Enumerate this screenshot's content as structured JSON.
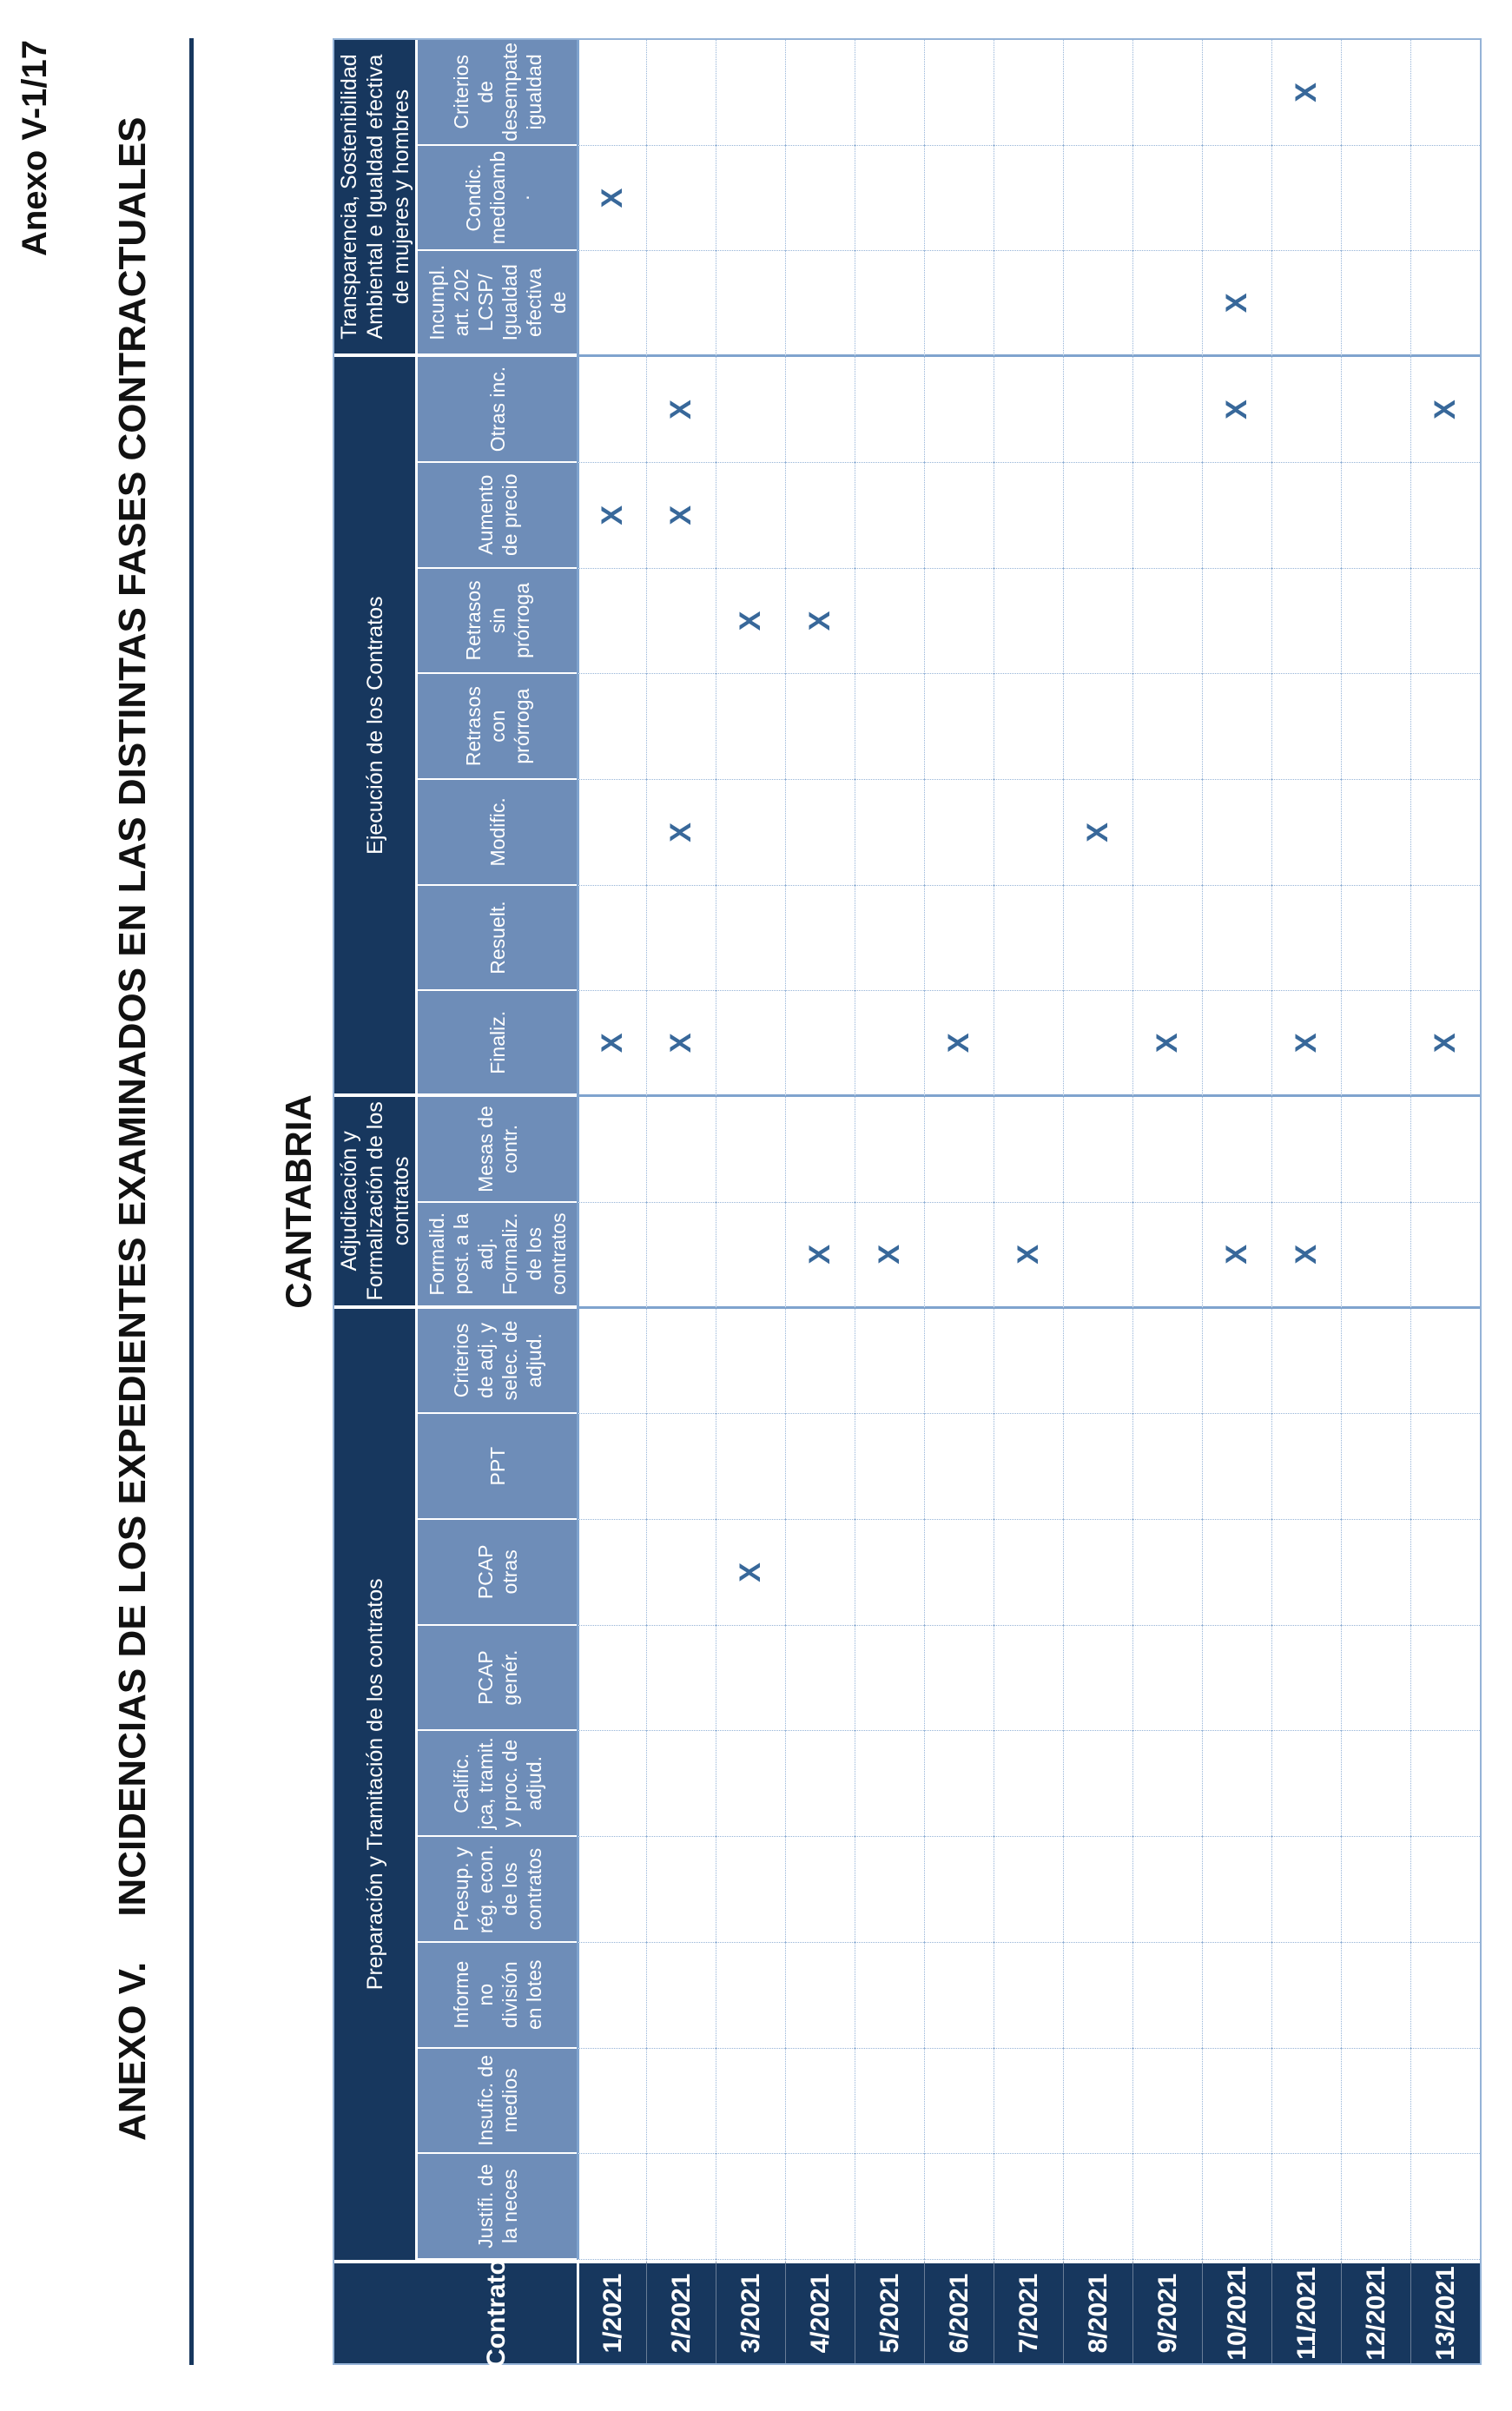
{
  "header": {
    "page_ref": "Anexo V-1/17",
    "title_prefix": "ANEXO V.",
    "title_main": "INCIDENCIAS DE LOS EXPEDIENTES EXAMINADOS EN LAS DISTINTAS FASES CONTRACTUALES",
    "region": "CANTABRIA"
  },
  "colors": {
    "header_navy": "#17375E",
    "subheader_blue": "#6E8DB8",
    "grid_dotted": "#95B3D7",
    "grid_solid": "#7FA3CE",
    "x_mark_blue": "#38689A"
  },
  "table": {
    "corner_label": "Contrato",
    "mark": "X",
    "groups": [
      {
        "label": "Preparación y Tramitación de los contratos",
        "span": 9
      },
      {
        "label": "Adjudicación y\nFormalización de los\ncontratos",
        "span": 2
      },
      {
        "label": "Ejecución de los Contratos",
        "span": 7
      },
      {
        "label": "Transparencia, Sostenibilidad\nAmbiental e Igualdad efectiva\nde mujeres y hombres",
        "span": 3
      }
    ],
    "columns": [
      {
        "id": "justif",
        "label": "Justifi. de\nla neces"
      },
      {
        "id": "insufic",
        "label": "Insufic. de\nmedios"
      },
      {
        "id": "informe-lotes",
        "label": "Informe\nno\ndivisión\nen lotes"
      },
      {
        "id": "presup",
        "label": "Presup. y\nrég. econ.\nde los\ncontratos"
      },
      {
        "id": "calific",
        "label": "Calific.\njca, tramit.\ny proc. de\nadjud."
      },
      {
        "id": "pcap-gener",
        "label": "PCAP\ngenér."
      },
      {
        "id": "pcap-otras",
        "label": "PCAP\notras"
      },
      {
        "id": "ppt",
        "label": "PPT"
      },
      {
        "id": "criterios-adj",
        "label": "Criterios\nde adj. y\nselec. de\nadjud."
      },
      {
        "id": "formalid",
        "label": "Formalid.\npost. a la\nadj.\nFormaliz.\nde los\ncontratos"
      },
      {
        "id": "mesas",
        "label": "Mesas de\ncontr."
      },
      {
        "id": "finaliz",
        "label": "Finaliz."
      },
      {
        "id": "resuelt",
        "label": "Resuelt."
      },
      {
        "id": "modific",
        "label": "Modific."
      },
      {
        "id": "retrasos-con",
        "label": "Retrasos\ncon\nprórroga"
      },
      {
        "id": "retrasos-sin",
        "label": "Retrasos\nsin\nprórroga"
      },
      {
        "id": "aumento",
        "label": "Aumento\nde precio"
      },
      {
        "id": "otras-inc",
        "label": "Otras inc."
      },
      {
        "id": "incumpl",
        "label": "Incumpl.\nart. 202\nLCSP/\nIgualdad\nefectiva\nde"
      },
      {
        "id": "condic",
        "label": "Condic.\nmedioamb\n."
      },
      {
        "id": "desempate",
        "label": "Criterios\nde\ndesempate\nigualdad"
      }
    ],
    "rows": [
      {
        "label": "1/2021",
        "marks": [
          "finaliz",
          "aumento",
          "condic"
        ]
      },
      {
        "label": "2/2021",
        "marks": [
          "finaliz",
          "modific",
          "aumento",
          "otras-inc"
        ]
      },
      {
        "label": "3/2021",
        "marks": [
          "pcap-otras",
          "retrasos-sin"
        ]
      },
      {
        "label": "4/2021",
        "marks": [
          "formalid",
          "retrasos-sin"
        ]
      },
      {
        "label": "5/2021",
        "marks": [
          "formalid"
        ]
      },
      {
        "label": "6/2021",
        "marks": [
          "finaliz"
        ]
      },
      {
        "label": "7/2021",
        "marks": [
          "formalid"
        ]
      },
      {
        "label": "8/2021",
        "marks": [
          "modific"
        ]
      },
      {
        "label": "9/2021",
        "marks": [
          "finaliz"
        ]
      },
      {
        "label": "10/2021",
        "marks": [
          "formalid",
          "otras-inc",
          "incumpl"
        ]
      },
      {
        "label": "11/2021",
        "marks": [
          "formalid",
          "finaliz",
          "desempate"
        ]
      },
      {
        "label": "12/2021",
        "marks": []
      },
      {
        "label": "13/2021",
        "marks": [
          "finaliz",
          "otras-inc"
        ]
      }
    ]
  }
}
